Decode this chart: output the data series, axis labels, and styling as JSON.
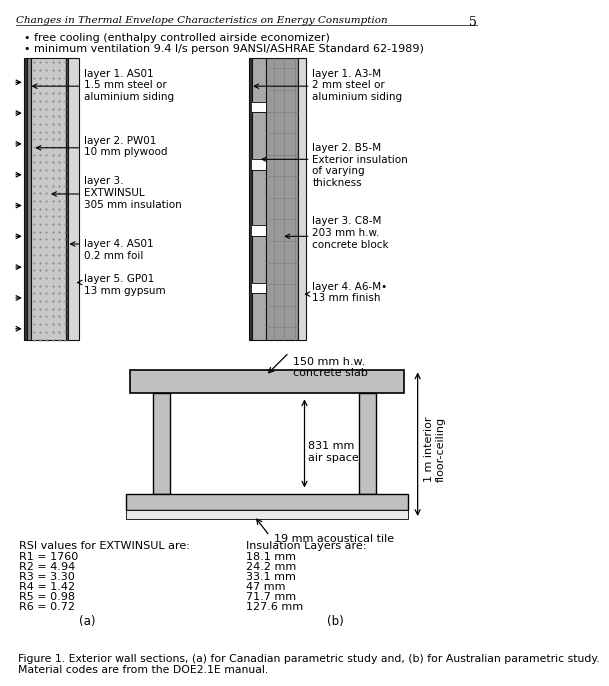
{
  "header_text": "Changes in Thermal Envelope Characteristics on Energy Consumption",
  "page_number": "5",
  "bullet1": "free cooling (enthalpy controlled airside economizer)",
  "bullet2": "minimum ventilation 9.4 l/s person 9ANSI/ASHRAE Standard 62-1989)",
  "canadian_layers": [
    "layer 1. AS01\n1.5 mm steel or\naluminium siding",
    "layer 2. PW01\n10 mm plywood",
    "layer 3.\nEXTWINSUL\n305 mm insulation",
    "layer 4. AS01\n0.2 mm foil",
    "layer 5. GP01\n13 mm gypsum"
  ],
  "australian_layers": [
    "layer 1. A3-M\n2 mm steel or\naluminium siding",
    "layer 2. B5-M\nExterior insulation\nof varying\nthickness",
    "layer 3. C8-M\n203 mm h.w.\nconcrete block",
    "layer 4. A6-M•\n13 mm finish"
  ],
  "slab_label": "150 mm h.w.\nconcrete slab",
  "air_space_label": "831 mm\nair space",
  "floor_ceiling_label": "1 m interior\nfloor-ceiling",
  "tile_label": "19 mm acoustical tile",
  "rsi_title": "RSI values for EXTWINSUL are:",
  "rsi_values": [
    "R1 = 1760",
    "R2 = 4.94",
    "R3 = 3.30",
    "R4 = 1.42",
    "R5 = 0.98",
    "R6 = 0.72"
  ],
  "insulation_title": "Insulation Layers are:",
  "insulation_values": [
    "18.1 mm",
    "24.2 mm",
    "33.1 mm",
    "47 mm",
    "71.7 mm",
    "127.6 mm"
  ],
  "label_a": "(a)",
  "label_b": "(b)",
  "caption": "Figure 1. Exterior wall sections, (a) for Canadian parametric study and, (b) for Australian parametric study.\nMaterial codes are from the DOE2.1E manual.",
  "bg_color": "#ffffff"
}
